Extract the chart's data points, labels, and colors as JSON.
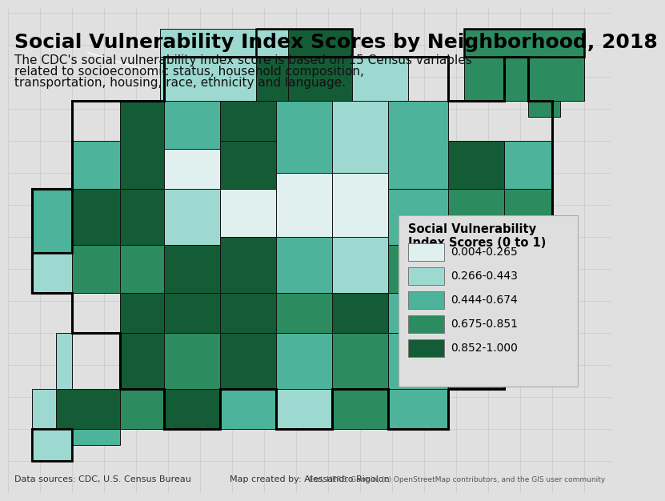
{
  "title": "Social Vulnerability Index Scores by Neighborhood, 2018",
  "subtitle_lines": [
    "The CDC's social vulnerability index score is based on 15 Census variables",
    "related to socioeconomic status, household composition,",
    "transportation, housing, race, ethnicity and language."
  ],
  "legend_title": "Social Vulnerability\nIndex Scores (0 to 1)",
  "legend_labels": [
    "0.004-0.265",
    "0.266-0.443",
    "0.444-0.674",
    "0.675-0.851",
    "0.852-1.000"
  ],
  "legend_colors": [
    "#dff0ee",
    "#9dd9d0",
    "#4db39a",
    "#2d8b60",
    "#145c35"
  ],
  "map_bg_color": "#e0e0e0",
  "fig_bg_color": "#e0e0e0",
  "footer_left": "Data sources: CDC, U.S. Census Bureau",
  "footer_center": "Map created by: Alessandro Rigolon",
  "footer_right": "Esri, HERE, Garmin, (c) OpenStreetMap contributors, and the GIS user community",
  "title_fontsize": 18,
  "subtitle_fontsize": 11,
  "legend_title_fontsize": 10.5,
  "legend_label_fontsize": 10,
  "footer_fontsize": 8,
  "grid_color": "#cccccc",
  "border_color": "#111111",
  "road_color": "#ffffff"
}
